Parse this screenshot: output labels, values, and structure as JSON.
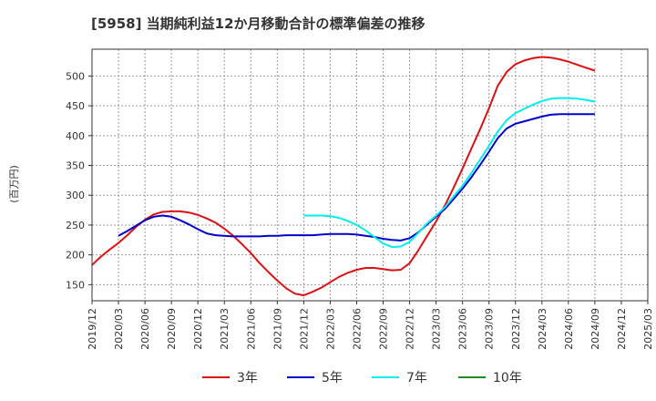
{
  "chart_data": {
    "type": "line",
    "title": "[5958]  当期純利益12か月移動合計の標準偏差の推移",
    "ylabel": "(百万円)",
    "xlabel": "",
    "ylim": [
      123,
      545
    ],
    "yticks": [
      150,
      200,
      250,
      300,
      350,
      400,
      450,
      500
    ],
    "xticks": [
      "2019/12",
      "2020/03",
      "2020/06",
      "2020/09",
      "2020/12",
      "2021/03",
      "2021/06",
      "2021/09",
      "2021/12",
      "2022/03",
      "2022/06",
      "2022/09",
      "2022/12",
      "2023/03",
      "2023/06",
      "2023/09",
      "2023/12",
      "2024/03",
      "2024/06",
      "2024/09",
      "2024/12",
      "2025/03"
    ],
    "grid": true,
    "legend_position": "bottom",
    "series": [
      {
        "name": "3年",
        "color": "#dd1111",
        "values": [
          183,
          197,
          209,
          220,
          233,
          247,
          259,
          268,
          272,
          273,
          273,
          271,
          267,
          261,
          254,
          244,
          232,
          218,
          203,
          186,
          171,
          157,
          144,
          135,
          132,
          138,
          145,
          154,
          163,
          170,
          175,
          178,
          178,
          176,
          174,
          175,
          186,
          208,
          232,
          256,
          283,
          313,
          345,
          378,
          411,
          446,
          484,
          507,
          520,
          526,
          530,
          532,
          531,
          528,
          524,
          519,
          514,
          509
        ]
      },
      {
        "name": "5年",
        "color": "#0000cc",
        "values": [
          null,
          null,
          null,
          232,
          240,
          249,
          258,
          264,
          266,
          264,
          258,
          251,
          243,
          236,
          233,
          232,
          231,
          231,
          231,
          231,
          232,
          232,
          233,
          233,
          233,
          233,
          234,
          235,
          235,
          235,
          234,
          232,
          230,
          227,
          225,
          224,
          228,
          238,
          251,
          264,
          277,
          294,
          311,
          330,
          351,
          373,
          396,
          412,
          420,
          424,
          428,
          432,
          435,
          436,
          436,
          436,
          436,
          436
        ]
      },
      {
        "name": "7年",
        "color": "#00eeee",
        "values": [
          null,
          null,
          null,
          null,
          null,
          null,
          null,
          null,
          null,
          null,
          null,
          null,
          null,
          null,
          null,
          null,
          null,
          null,
          null,
          null,
          null,
          null,
          null,
          null,
          266,
          266,
          266,
          265,
          262,
          257,
          250,
          241,
          230,
          219,
          213,
          214,
          222,
          237,
          253,
          266,
          280,
          298,
          316,
          337,
          360,
          383,
          407,
          426,
          438,
          445,
          452,
          458,
          462,
          463,
          463,
          462,
          460,
          457
        ]
      },
      {
        "name": "10年",
        "color": "#228822",
        "values": []
      }
    ]
  }
}
